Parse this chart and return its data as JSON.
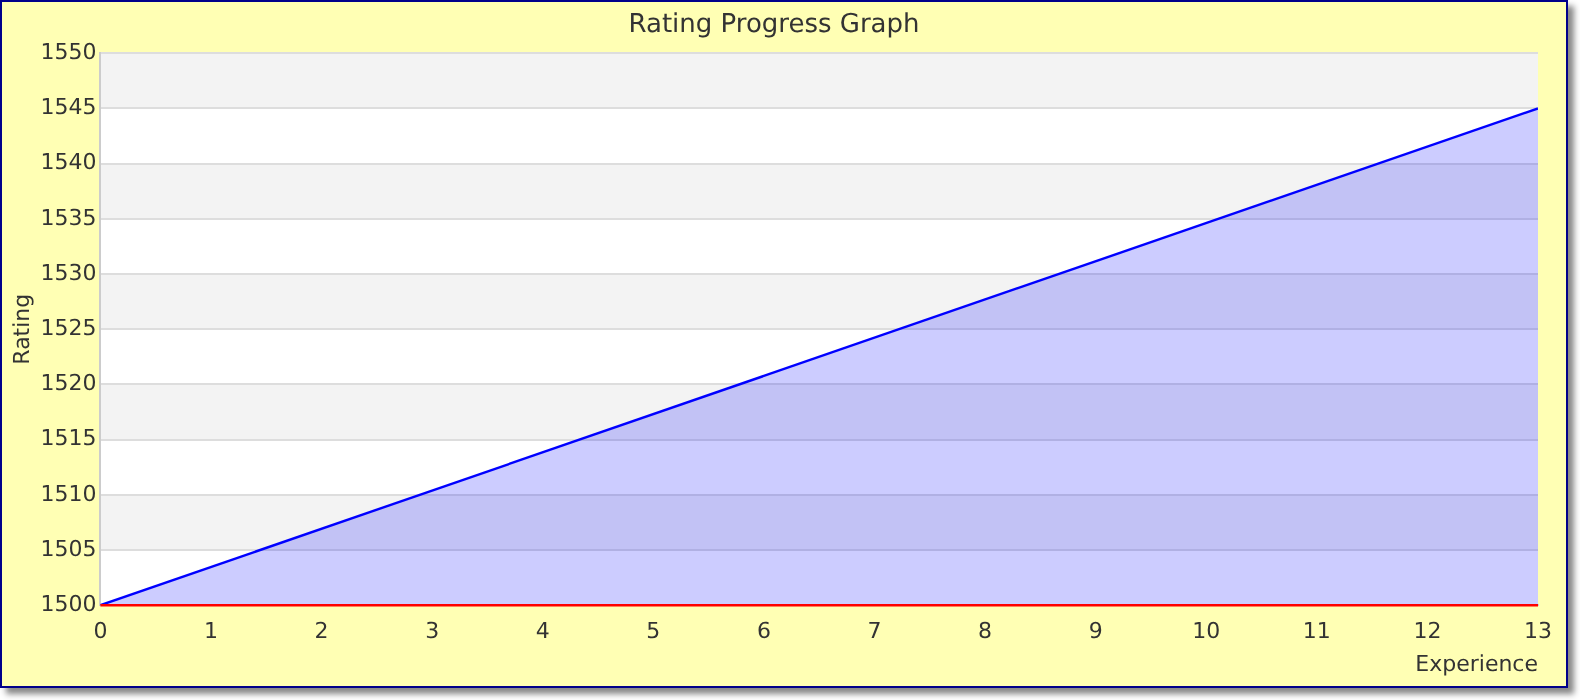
{
  "chart_data": {
    "type": "area",
    "title": "Rating Progress Graph",
    "xlabel": "Experience",
    "ylabel": "Rating",
    "x": [
      0,
      13
    ],
    "series": [
      {
        "color": "#0000ff",
        "values": [
          1500,
          1545
        ]
      }
    ],
    "xlim": [
      0,
      13
    ],
    "xticks": [
      0,
      1,
      2,
      3,
      4,
      5,
      6,
      7,
      8,
      9,
      10,
      11,
      12,
      13
    ],
    "ylim": [
      1500,
      1550
    ],
    "yticks": [
      1500,
      1505,
      1510,
      1515,
      1520,
      1525,
      1530,
      1535,
      1540,
      1545,
      1550
    ],
    "ref_lines": [
      {
        "axis": "y",
        "value": 1500,
        "color": "#ff0000"
      }
    ],
    "grid": "y",
    "legend": false,
    "marker": "none",
    "line_style": "solid"
  }
}
